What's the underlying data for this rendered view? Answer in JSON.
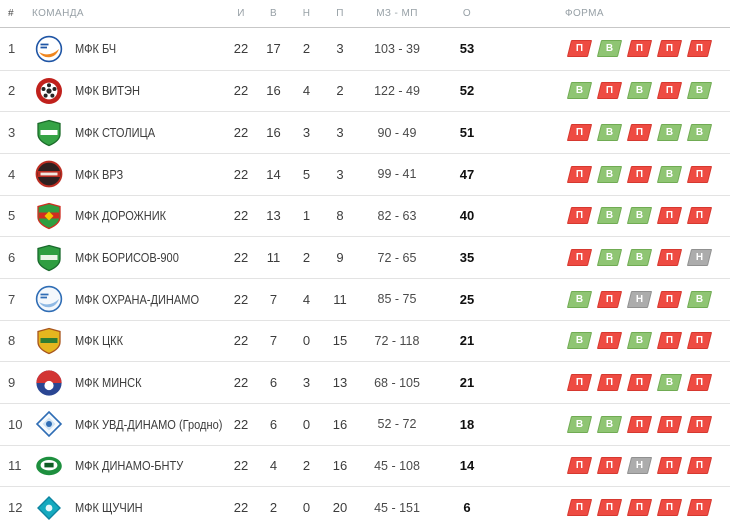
{
  "standings": {
    "header": {
      "pos": "#",
      "team": "КОМАНДА",
      "played": "И",
      "wins": "В",
      "draws": "Н",
      "losses": "П",
      "goals": "МЗ - МП",
      "points": "О",
      "form": "ФОРМА"
    },
    "form_styles": {
      "В": {
        "bg": "#8fc573",
        "border": "#70ab53",
        "kind": "win"
      },
      "П": {
        "bg": "#ee4b42",
        "border": "#d6382f",
        "kind": "loss"
      },
      "Н": {
        "bg": "#acacac",
        "border": "#909090",
        "kind": "draw"
      }
    },
    "rows": [
      {
        "pos": "1",
        "team": "МФК БЧ",
        "played": "22",
        "wins": "17",
        "draws": "2",
        "losses": "3",
        "goals": "103 - 39",
        "points": "53",
        "form": [
          "П",
          "В",
          "П",
          "П",
          "П"
        ],
        "logo": {
          "shape": "circle",
          "colors": [
            "#ffffff",
            "#1f55a5",
            "#f0861f"
          ]
        }
      },
      {
        "pos": "2",
        "team": "МФК ВИТЭН",
        "played": "22",
        "wins": "16",
        "draws": "4",
        "losses": "2",
        "goals": "122 - 49",
        "points": "52",
        "form": [
          "В",
          "П",
          "В",
          "П",
          "В"
        ],
        "logo": {
          "shape": "ball",
          "colors": [
            "#c0211c",
            "#262626",
            "#ffffff"
          ]
        }
      },
      {
        "pos": "3",
        "team": "МФК СТОЛИЦА",
        "played": "22",
        "wins": "16",
        "draws": "3",
        "losses": "3",
        "goals": "90 - 49",
        "points": "51",
        "form": [
          "П",
          "В",
          "П",
          "В",
          "В"
        ],
        "logo": {
          "shape": "shield",
          "colors": [
            "#35a345",
            "#ffffff",
            "#1c6b2a"
          ]
        }
      },
      {
        "pos": "4",
        "team": "МФК ВРЗ",
        "played": "22",
        "wins": "14",
        "draws": "5",
        "losses": "3",
        "goals": "99 - 41",
        "points": "47",
        "form": [
          "П",
          "В",
          "П",
          "В",
          "П"
        ],
        "logo": {
          "shape": "circle-band",
          "colors": [
            "#2e2020",
            "#bb2d22",
            "#f0e8e0"
          ]
        }
      },
      {
        "pos": "5",
        "team": "МФК ДОРОЖНИК",
        "played": "22",
        "wins": "13",
        "draws": "1",
        "losses": "8",
        "goals": "82 - 63",
        "points": "40",
        "form": [
          "П",
          "В",
          "В",
          "П",
          "П"
        ],
        "logo": {
          "shape": "shield3",
          "colors": [
            "#2f9e41",
            "#cf2d20",
            "#f3c300"
          ]
        }
      },
      {
        "pos": "6",
        "team": "МФК БОРИСОВ-900",
        "played": "22",
        "wins": "11",
        "draws": "2",
        "losses": "9",
        "goals": "72 - 65",
        "points": "35",
        "form": [
          "П",
          "В",
          "В",
          "П",
          "Н"
        ],
        "logo": {
          "shape": "shield",
          "colors": [
            "#2f9e41",
            "#eaf4e8",
            "#19692c"
          ]
        }
      },
      {
        "pos": "7",
        "team": "МФК ОХРАНА-ДИНАМО",
        "played": "22",
        "wins": "7",
        "draws": "4",
        "losses": "11",
        "goals": "85 - 75",
        "points": "25",
        "form": [
          "В",
          "П",
          "Н",
          "П",
          "В"
        ],
        "logo": {
          "shape": "circle",
          "colors": [
            "#f4f8fc",
            "#2f6db5",
            "#8fb9e4"
          ]
        }
      },
      {
        "pos": "8",
        "team": "МФК ЦКК",
        "played": "22",
        "wins": "7",
        "draws": "0",
        "losses": "15",
        "goals": "72 - 118",
        "points": "21",
        "form": [
          "В",
          "П",
          "В",
          "П",
          "П"
        ],
        "logo": {
          "shape": "shield",
          "colors": [
            "#e5b61f",
            "#2f7d32",
            "#a8541d"
          ]
        }
      },
      {
        "pos": "9",
        "team": "МФК МИНСК",
        "played": "22",
        "wins": "6",
        "draws": "3",
        "losses": "13",
        "goals": "68 - 105",
        "points": "21",
        "form": [
          "П",
          "П",
          "П",
          "В",
          "П"
        ],
        "logo": {
          "shape": "crest",
          "colors": [
            "#d23434",
            "#2a4693",
            "#ffffff"
          ]
        }
      },
      {
        "pos": "10",
        "team": "МФК УВД-ДИНАМО (Гродно)",
        "played": "22",
        "wins": "6",
        "draws": "0",
        "losses": "16",
        "goals": "52 - 72",
        "points": "18",
        "form": [
          "В",
          "В",
          "П",
          "П",
          "П"
        ],
        "logo": {
          "shape": "diamond",
          "colors": [
            "#f6fafd",
            "#2f6db5",
            "#cfe2f2"
          ]
        }
      },
      {
        "pos": "11",
        "team": "МФК ДИНАМО-БНТУ",
        "played": "22",
        "wins": "4",
        "draws": "2",
        "losses": "16",
        "goals": "45 - 108",
        "points": "14",
        "form": [
          "П",
          "П",
          "Н",
          "П",
          "П"
        ],
        "logo": {
          "shape": "oval",
          "colors": [
            "#1d8f3e",
            "#ffffff",
            "#0e5c24"
          ]
        }
      },
      {
        "pos": "12",
        "team": "МФК ЩУЧИН",
        "played": "22",
        "wins": "2",
        "draws": "0",
        "losses": "20",
        "goals": "45 - 151",
        "points": "6",
        "form": [
          "П",
          "П",
          "П",
          "П",
          "П"
        ],
        "logo": {
          "shape": "diamond-solid",
          "colors": [
            "#15aabf",
            "#0d84a0",
            "#e8f7fa"
          ]
        }
      }
    ]
  }
}
